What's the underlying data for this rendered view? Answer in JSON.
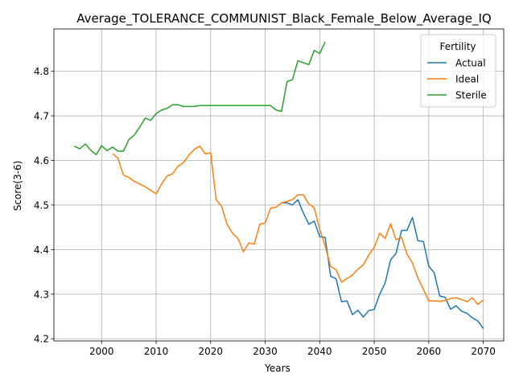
{
  "chart_data": {
    "type": "line",
    "title": "Average_TOLERANCE_COMMUNIST_Black_Female_Below_Average_IQ",
    "xlabel": "Years",
    "ylabel": "Score(3-6)",
    "xlim": [
      1991.25,
      2073.75
    ],
    "ylim": [
      4.195,
      4.895
    ],
    "xticks": [
      2000,
      2010,
      2020,
      2030,
      2040,
      2050,
      2060,
      2070
    ],
    "yticks": [
      4.2,
      4.3,
      4.4,
      4.5,
      4.6,
      4.7,
      4.8
    ],
    "grid": true,
    "legend": {
      "title": "Fertility",
      "position": "top-right"
    },
    "series": [
      {
        "name": "Actual",
        "color": "#1f77b4",
        "x": [
          2033,
          2034,
          2035,
          2036,
          2037,
          2038,
          2039,
          2040,
          2041,
          2042,
          2043,
          2044,
          2045,
          2046,
          2047,
          2048,
          2049,
          2050,
          2051,
          2052,
          2053,
          2054,
          2055,
          2056,
          2057,
          2058,
          2059,
          2060,
          2061,
          2062,
          2063,
          2064,
          2065,
          2066,
          2067,
          2068,
          2069,
          2070
        ],
        "y": [
          4.505,
          4.505,
          4.5,
          4.512,
          4.482,
          4.457,
          4.464,
          4.429,
          4.427,
          4.34,
          4.335,
          4.283,
          4.285,
          4.254,
          4.264,
          4.249,
          4.263,
          4.266,
          4.3,
          4.325,
          4.377,
          4.392,
          4.443,
          4.443,
          4.472,
          4.42,
          4.418,
          4.363,
          4.348,
          4.296,
          4.293,
          4.266,
          4.274,
          4.262,
          4.257,
          4.247,
          4.24,
          4.223
        ]
      },
      {
        "name": "Ideal",
        "color": "#ff7f0e",
        "x": [
          2002,
          2003,
          2004,
          2005,
          2006,
          2007,
          2008,
          2009,
          2010,
          2011,
          2012,
          2013,
          2014,
          2015,
          2016,
          2017,
          2018,
          2019,
          2020,
          2021,
          2022,
          2023,
          2024,
          2025,
          2026,
          2027,
          2028,
          2029,
          2030,
          2031,
          2032,
          2033,
          2034,
          2035,
          2036,
          2037,
          2038,
          2039,
          2040,
          2041,
          2042,
          2043,
          2044,
          2045,
          2046,
          2047,
          2048,
          2049,
          2050,
          2051,
          2052,
          2053,
          2054,
          2055,
          2056,
          2057,
          2058,
          2059,
          2060,
          2061,
          2062,
          2063,
          2064,
          2065,
          2066,
          2067,
          2068,
          2069,
          2070
        ],
        "y": [
          4.615,
          4.605,
          4.567,
          4.562,
          4.553,
          4.547,
          4.541,
          4.533,
          4.525,
          4.547,
          4.565,
          4.57,
          4.587,
          4.595,
          4.612,
          4.625,
          4.632,
          4.615,
          4.617,
          4.512,
          4.497,
          4.457,
          4.437,
          4.425,
          4.395,
          4.415,
          4.412,
          4.457,
          4.46,
          4.493,
          4.495,
          4.505,
          4.508,
          4.512,
          4.523,
          4.523,
          4.502,
          4.494,
          4.445,
          4.408,
          4.362,
          4.355,
          4.327,
          4.335,
          4.343,
          4.356,
          4.366,
          4.388,
          4.405,
          4.437,
          4.425,
          4.458,
          4.422,
          4.428,
          4.39,
          4.37,
          4.336,
          4.311,
          4.285,
          4.285,
          4.284,
          4.286,
          4.29,
          4.292,
          4.288,
          4.283,
          4.292,
          4.277,
          4.287
        ]
      },
      {
        "name": "Sterile",
        "color": "#2ca02c",
        "x": [
          1995,
          1996,
          1997,
          1998,
          1999,
          2000,
          2001,
          2002,
          2003,
          2004,
          2005,
          2006,
          2007,
          2008,
          2009,
          2010,
          2011,
          2012,
          2013,
          2014,
          2015,
          2016,
          2017,
          2018,
          2019,
          2020,
          2021,
          2022,
          2023,
          2024,
          2025,
          2026,
          2027,
          2028,
          2029,
          2030,
          2031,
          2032,
          2033,
          2034,
          2035,
          2036,
          2037,
          2038,
          2039,
          2040,
          2041
        ],
        "y": [
          4.632,
          4.626,
          4.637,
          4.623,
          4.613,
          4.633,
          4.622,
          4.63,
          4.621,
          4.621,
          4.647,
          4.657,
          4.675,
          4.695,
          4.69,
          4.705,
          4.713,
          4.717,
          4.725,
          4.725,
          4.721,
          4.721,
          4.721,
          4.723,
          4.723,
          4.723,
          4.723,
          4.723,
          4.723,
          4.723,
          4.723,
          4.723,
          4.723,
          4.723,
          4.723,
          4.723,
          4.723,
          4.713,
          4.71,
          4.777,
          4.781,
          4.824,
          4.819,
          4.815,
          4.847,
          4.84,
          4.866
        ]
      }
    ]
  }
}
